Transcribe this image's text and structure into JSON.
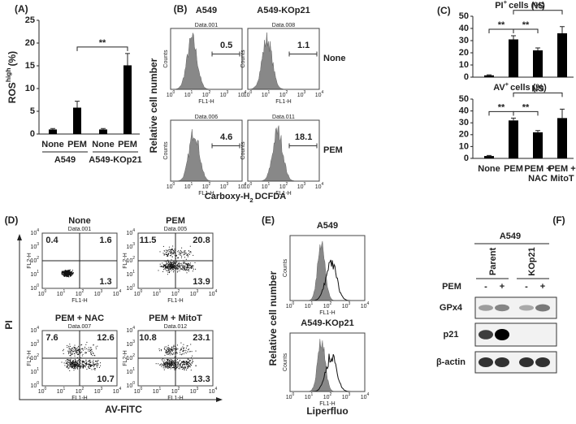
{
  "chart_data": [
    {
      "type": "bar",
      "panel": "(A)",
      "ylabel": [
        "ROS",
        "high",
        "(%)"
      ],
      "categories": [
        "None",
        "PEM",
        "None",
        "PEM"
      ],
      "groups": [
        "A549",
        "A549-KOp21"
      ],
      "values": [
        1,
        5.8,
        1,
        15.1
      ],
      "errors": [
        0.2,
        1.4,
        0.2,
        2.6
      ],
      "color": "#000000",
      "ylim": [
        0,
        25
      ],
      "yticks": [
        0,
        5,
        10,
        15,
        20,
        25
      ],
      "annotations": [
        "**"
      ]
    },
    {
      "type": "bar",
      "panel": "(C)",
      "title": [
        "PI",
        "+",
        "cells (%)"
      ],
      "values": [
        1.5,
        31,
        22,
        36
      ],
      "errors": [
        0.4,
        3,
        2,
        5.5
      ],
      "color": "#000000",
      "ylim": [
        0,
        50
      ],
      "yticks": [
        0,
        10,
        20,
        30,
        40,
        50
      ],
      "annotations": [
        "**",
        "**",
        "NS"
      ]
    },
    {
      "type": "bar",
      "title": [
        "AV",
        "+",
        "cells (%)"
      ],
      "categories": [
        "None",
        "PEM",
        [
          "PEM +",
          "NAC"
        ],
        [
          "PEM +",
          "MitoT"
        ]
      ],
      "values": [
        2,
        32,
        22,
        34
      ],
      "errors": [
        0.5,
        2,
        1.5,
        7.5
      ],
      "color": "#000000",
      "ylim": [
        0,
        50
      ],
      "yticks": [
        0,
        10,
        20,
        30,
        40,
        50
      ],
      "annotations": [
        "**",
        "**",
        "NS"
      ]
    }
  ],
  "log_ticks": [
    {
      "base": "10",
      "exp": "0"
    },
    {
      "base": "10",
      "exp": "1"
    },
    {
      "base": "10",
      "exp": "2"
    },
    {
      "base": "10",
      "exp": "3"
    },
    {
      "base": "10",
      "exp": "4"
    }
  ],
  "panel_b": {
    "panel": "(B)",
    "columns": [
      "A549",
      "A549-KOp21"
    ],
    "rows": [
      "None",
      "PEM"
    ],
    "plots": [
      {
        "data": "Data.001",
        "value": 0.5
      },
      {
        "data": "Data.008",
        "value": 1.1
      },
      {
        "data": "Data.006",
        "value": 4.6
      },
      {
        "data": "Data.011",
        "value": 18.1
      }
    ],
    "ylabel": "Relative cell number",
    "xlabel": [
      "Carboxy-H",
      "2",
      "DCFDA"
    ],
    "plot_ylabel": "Counts",
    "plot_xlabel": "FL1-H"
  },
  "panel_d": {
    "panel": "(D)",
    "plots": [
      {
        "title": "None",
        "data": "Data.001",
        "quadrants": [
          0.4,
          1.6,
          1.3
        ]
      },
      {
        "title": "PEM",
        "data": "Data.005",
        "quadrants": [
          11.5,
          20.8,
          13.9
        ]
      },
      {
        "title": "PEM + NAC",
        "data": "Data.007",
        "quadrants": [
          7.6,
          12.6,
          10.7
        ]
      },
      {
        "title": "PEM + MitoT",
        "data": "Data.012",
        "quadrants": [
          10.8,
          23.1,
          13.3
        ]
      }
    ],
    "ylabel": "PI",
    "xlabel": "AV-FITC",
    "plot_ylabel": "FL2-H",
    "plot_xlabel": "FL1-H"
  },
  "panel_e": {
    "panel": "(E)",
    "plots": [
      "A549",
      "A549-KOp21"
    ],
    "ylabel": "Relative cell number",
    "xlabel": "Liperfluo",
    "plot_ylabel": "Counts",
    "plot_xlabel": "FL1-H"
  },
  "panel_f": {
    "panel": "(F)",
    "cell_line": "A549",
    "lanes": [
      "Parent",
      "KOp21"
    ],
    "treatment": "PEM",
    "signs": [
      "-",
      "+",
      "-",
      "+"
    ],
    "proteins": [
      "GPx4",
      "p21",
      "β-actin"
    ]
  }
}
